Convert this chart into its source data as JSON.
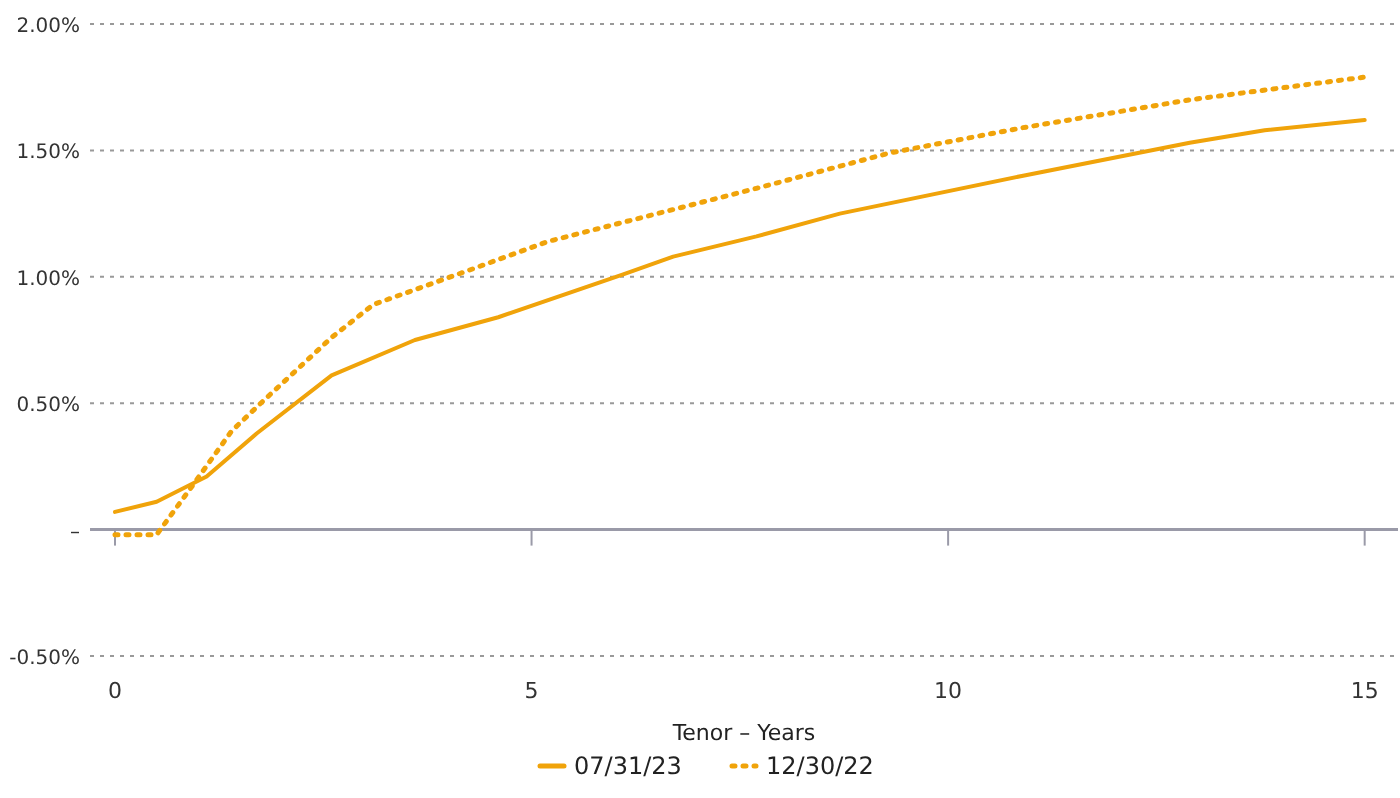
{
  "chart_data": {
    "type": "line",
    "xlabel": "Tenor – Years",
    "xlim": [
      -0.3,
      15.4
    ],
    "xticks": [
      0,
      5,
      10,
      15
    ],
    "ylim": [
      -0.5,
      2
    ],
    "yticks": [
      {
        "value": -0.5,
        "label": "-0.50%"
      },
      {
        "value": 0,
        "label": "–"
      },
      {
        "value": 0.5,
        "label": "0.50%"
      },
      {
        "value": 1,
        "label": "1.00%"
      },
      {
        "value": 1.5,
        "label": "1.50%"
      },
      {
        "value": 2,
        "label": "2.00%"
      }
    ],
    "grid": "y",
    "legend": "bottom",
    "series": [
      {
        "name": "07/31/23",
        "color": "#f0a30a",
        "line_style": "solid",
        "x": [
          0,
          0.5,
          1.1,
          1.7,
          2.6,
          3.6,
          4.6,
          6.1,
          6.7,
          7.7,
          8.7,
          10.9,
          12.9,
          13.8,
          15
        ],
        "values": [
          0.07,
          0.11,
          0.21,
          0.38,
          0.61,
          0.75,
          0.84,
          1.01,
          1.08,
          1.16,
          1.25,
          1.4,
          1.53,
          1.58,
          1.62
        ]
      },
      {
        "name": "12/30/22",
        "color": "#f0a30a",
        "line_style": "dotted",
        "x": [
          0,
          0.5,
          0.9,
          1.4,
          1.75,
          2.6,
          3.1,
          4.2,
          5.2,
          7.7,
          9.3,
          10.9,
          12.9,
          15
        ],
        "values": [
          -0.02,
          -0.02,
          0.16,
          0.39,
          0.5,
          0.76,
          0.89,
          1.02,
          1.14,
          1.35,
          1.49,
          1.59,
          1.7,
          1.79
        ]
      }
    ]
  }
}
